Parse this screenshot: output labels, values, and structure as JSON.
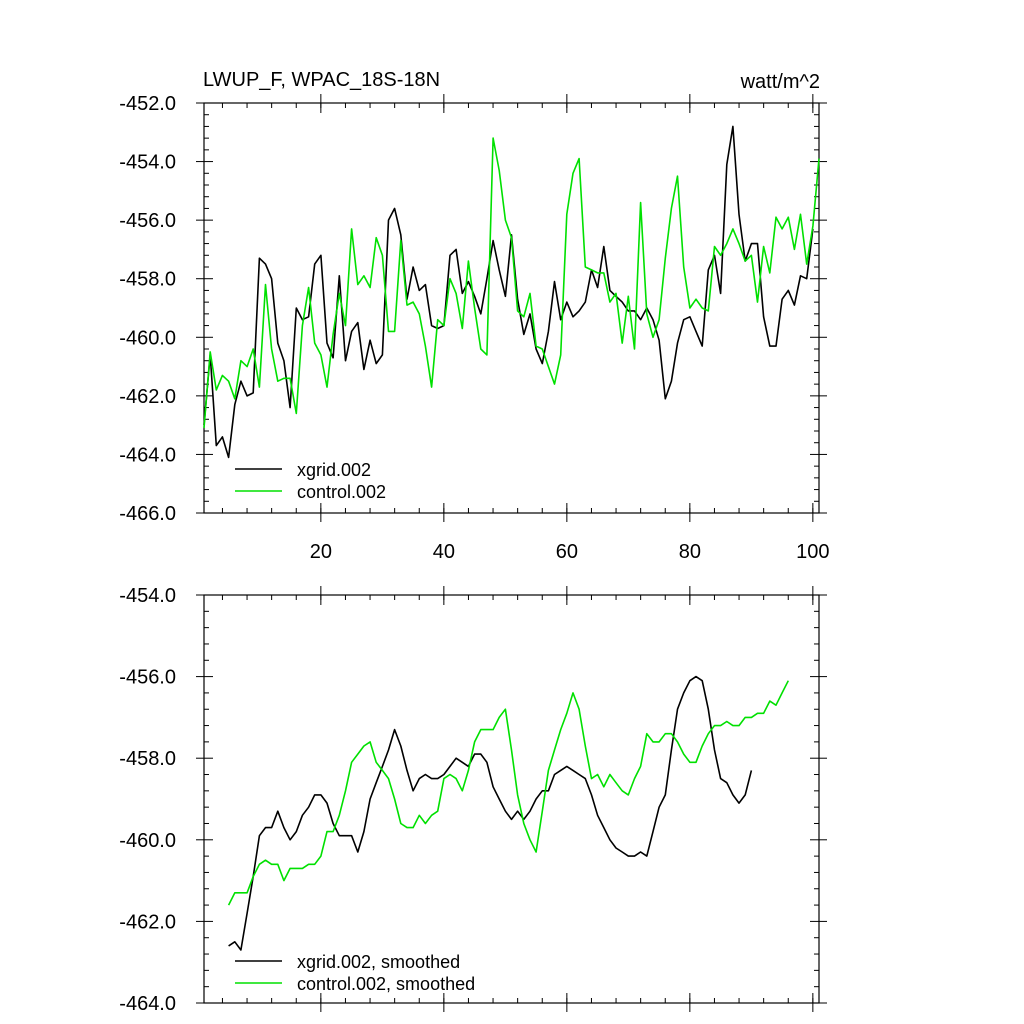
{
  "chart_data": [
    {
      "type": "line",
      "title": "LWUP_F, WPAC_18S-18N",
      "units": "watt/m^2",
      "xlim": [
        1,
        101
      ],
      "ylim": [
        -466,
        -452
      ],
      "ytick_labels": [
        "-452.0",
        "-454.0",
        "-456.0",
        "-458.0",
        "-460.0",
        "-462.0",
        "-464.0",
        "-466.0"
      ],
      "yticks": [
        -452,
        -454,
        -456,
        -458,
        -460,
        -462,
        -464,
        -466
      ],
      "xtick_labels": [
        "20",
        "40",
        "60",
        "80",
        "100"
      ],
      "xticks": [
        20,
        40,
        60,
        80,
        100
      ],
      "legend": {
        "position": "bottom-left"
      },
      "series": [
        {
          "name": "xgrid.002",
          "color": "#000000",
          "x_start": 1,
          "values": [
            -463.0,
            -460.6,
            -463.7,
            -463.4,
            -464.1,
            -462.3,
            -461.5,
            -462.0,
            -461.9,
            -457.3,
            -457.5,
            -458.0,
            -460.2,
            -460.8,
            -462.4,
            -459.0,
            -459.4,
            -459.3,
            -457.5,
            -457.2,
            -460.2,
            -460.7,
            -457.9,
            -460.8,
            -459.8,
            -459.5,
            -461.1,
            -460.1,
            -460.9,
            -460.6,
            -456.0,
            -455.6,
            -456.5,
            -458.7,
            -457.6,
            -458.4,
            -458.2,
            -459.6,
            -459.7,
            -459.6,
            -457.2,
            -457.0,
            -458.5,
            -458.1,
            -458.6,
            -459.2,
            -458.0,
            -456.7,
            -457.7,
            -458.6,
            -456.5,
            -458.7,
            -459.9,
            -459.2,
            -460.4,
            -460.9,
            -459.8,
            -458.1,
            -459.4,
            -458.8,
            -459.3,
            -459.1,
            -458.8,
            -457.7,
            -458.3,
            -456.9,
            -458.4,
            -458.6,
            -458.8,
            -459.1,
            -459.1,
            -459.4,
            -459.0,
            -459.4,
            -460.1,
            -462.1,
            -461.5,
            -460.2,
            -459.4,
            -459.3,
            -459.8,
            -460.3,
            -457.7,
            -457.2,
            -458.5,
            -454.1,
            -452.8,
            -455.8,
            -457.4,
            -456.8,
            -456.8,
            -459.3,
            -460.3,
            -460.3,
            -458.7,
            -458.4,
            -458.9,
            -457.9,
            -458.0,
            -456.3
          ]
        },
        {
          "name": "control.002",
          "color": "#00e000",
          "x_start": 1,
          "values": [
            -463.1,
            -460.5,
            -461.8,
            -461.3,
            -461.5,
            -462.1,
            -460.8,
            -461.0,
            -460.4,
            -461.7,
            -458.2,
            -460.4,
            -461.5,
            -461.4,
            -461.4,
            -462.6,
            -459.6,
            -458.3,
            -460.2,
            -460.6,
            -461.7,
            -459.9,
            -458.5,
            -459.6,
            -456.3,
            -458.2,
            -457.9,
            -458.3,
            -456.6,
            -457.2,
            -459.8,
            -459.8,
            -456.7,
            -458.9,
            -458.8,
            -459.2,
            -460.3,
            -461.7,
            -459.4,
            -459.6,
            -458.0,
            -458.5,
            -459.7,
            -457.4,
            -459.0,
            -460.4,
            -460.6,
            -453.2,
            -454.3,
            -456.0,
            -456.6,
            -459.1,
            -459.3,
            -458.5,
            -460.3,
            -460.4,
            -461.0,
            -461.6,
            -460.6,
            -455.8,
            -454.4,
            -453.9,
            -457.6,
            -457.7,
            -457.8,
            -457.8,
            -458.8,
            -458.5,
            -460.2,
            -458.6,
            -460.4,
            -455.4,
            -459.2,
            -460.0,
            -459.4,
            -457.3,
            -455.6,
            -454.5,
            -457.6,
            -459.0,
            -458.7,
            -459.0,
            -459.1,
            -456.9,
            -457.2,
            -456.8,
            -456.3,
            -456.8,
            -457.4,
            -457.2,
            -458.8,
            -456.9,
            -457.8,
            -455.9,
            -456.3,
            -455.9,
            -457.0,
            -455.8,
            -457.5,
            -456.2,
            -453.9
          ]
        }
      ]
    },
    {
      "type": "line",
      "title": "",
      "xlim": [
        1,
        101
      ],
      "ylim": [
        -464,
        -454
      ],
      "ytick_labels": [
        "-454.0",
        "-456.0",
        "-458.0",
        "-460.0",
        "-462.0",
        "-464.0"
      ],
      "yticks": [
        -454,
        -456,
        -458,
        -460,
        -462,
        -464
      ],
      "xticks": [
        20,
        40,
        60,
        80,
        100
      ],
      "legend": {
        "position": "bottom-left"
      },
      "series": [
        {
          "name": "xgrid.002, smoothed",
          "color": "#000000",
          "x_start": 5,
          "values": [
            -462.6,
            -462.5,
            -462.7,
            -461.8,
            -460.9,
            -459.9,
            -459.7,
            -459.7,
            -459.3,
            -459.7,
            -460.0,
            -459.8,
            -459.4,
            -459.2,
            -458.9,
            -458.9,
            -459.1,
            -459.6,
            -459.9,
            -459.9,
            -459.9,
            -460.3,
            -459.8,
            -459.0,
            -458.6,
            -458.2,
            -457.8,
            -457.3,
            -457.7,
            -458.3,
            -458.8,
            -458.5,
            -458.4,
            -458.5,
            -458.5,
            -458.4,
            -458.2,
            -458.0,
            -458.1,
            -458.2,
            -457.9,
            -457.9,
            -458.1,
            -458.7,
            -459.0,
            -459.3,
            -459.5,
            -459.3,
            -459.5,
            -459.3,
            -459.0,
            -458.8,
            -458.8,
            -458.4,
            -458.3,
            -458.2,
            -458.3,
            -458.4,
            -458.5,
            -458.9,
            -459.4,
            -459.7,
            -460.0,
            -460.2,
            -460.3,
            -460.4,
            -460.4,
            -460.3,
            -460.4,
            -459.8,
            -459.2,
            -458.9,
            -457.8,
            -456.8,
            -456.4,
            -456.1,
            -456.0,
            -456.1,
            -456.8,
            -457.8,
            -458.5,
            -458.6,
            -458.9,
            -459.1,
            -458.9,
            -458.3
          ]
        },
        {
          "name": "control.002, smoothed",
          "color": "#00e000",
          "x_start": 5,
          "values": [
            -461.6,
            -461.3,
            -461.3,
            -461.3,
            -460.9,
            -460.6,
            -460.5,
            -460.6,
            -460.6,
            -461.0,
            -460.7,
            -460.7,
            -460.7,
            -460.6,
            -460.6,
            -460.4,
            -459.8,
            -459.8,
            -459.4,
            -458.8,
            -458.1,
            -457.9,
            -457.7,
            -457.6,
            -458.1,
            -458.3,
            -458.5,
            -459.0,
            -459.6,
            -459.7,
            -459.7,
            -459.4,
            -459.6,
            -459.4,
            -459.3,
            -458.5,
            -458.4,
            -458.5,
            -458.8,
            -458.3,
            -457.6,
            -457.3,
            -457.3,
            -457.3,
            -457.0,
            -456.8,
            -457.8,
            -458.9,
            -459.6,
            -460.0,
            -460.3,
            -459.3,
            -458.3,
            -457.8,
            -457.3,
            -456.9,
            -456.4,
            -456.8,
            -457.7,
            -458.5,
            -458.4,
            -458.7,
            -458.4,
            -458.6,
            -458.8,
            -458.9,
            -458.5,
            -458.2,
            -457.4,
            -457.6,
            -457.6,
            -457.4,
            -457.4,
            -457.6,
            -457.9,
            -458.1,
            -458.1,
            -457.7,
            -457.4,
            -457.2,
            -457.2,
            -457.1,
            -457.2,
            -457.2,
            -457.0,
            -457.0,
            -456.9,
            -456.9,
            -456.6,
            -456.7,
            -456.4,
            -456.1
          ]
        }
      ]
    }
  ]
}
